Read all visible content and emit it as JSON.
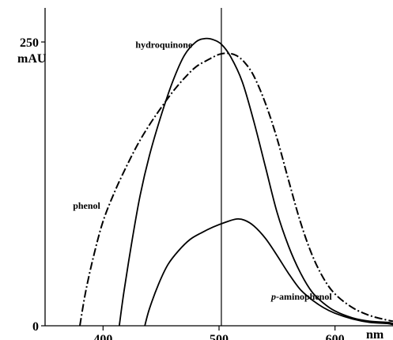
{
  "chart_data": {
    "type": "line",
    "x_unit_label": "nm",
    "y_unit_label": "mAU",
    "xlim": [
      350,
      650
    ],
    "ylim": [
      0,
      280
    ],
    "x_ticks": [
      {
        "value": 400,
        "label": "400"
      },
      {
        "value": 500,
        "label": "500"
      },
      {
        "value": 600,
        "label": "600"
      }
    ],
    "y_ticks": [
      {
        "value": 0,
        "label": "0"
      },
      {
        "value": 250,
        "label": "250"
      }
    ],
    "reference_line_x": 502,
    "series": [
      {
        "name": "hydroquinone",
        "style": "solid",
        "points": [
          [
            414,
            0
          ],
          [
            418,
            30
          ],
          [
            425,
            75
          ],
          [
            432,
            115
          ],
          [
            440,
            150
          ],
          [
            450,
            185
          ],
          [
            460,
            215
          ],
          [
            470,
            238
          ],
          [
            480,
            250
          ],
          [
            488,
            253
          ],
          [
            495,
            252
          ],
          [
            502,
            248
          ],
          [
            510,
            237
          ],
          [
            520,
            215
          ],
          [
            530,
            180
          ],
          [
            540,
            140
          ],
          [
            550,
            100
          ],
          [
            560,
            70
          ],
          [
            570,
            47
          ],
          [
            580,
            30
          ],
          [
            590,
            20
          ],
          [
            600,
            13
          ],
          [
            615,
            7
          ],
          [
            630,
            4
          ],
          [
            645,
            3
          ],
          [
            650,
            2
          ]
        ]
      },
      {
        "name": "phenol",
        "style": "dashdot",
        "points": [
          [
            380,
            0
          ],
          [
            385,
            30
          ],
          [
            392,
            62
          ],
          [
            400,
            92
          ],
          [
            410,
            118
          ],
          [
            420,
            140
          ],
          [
            430,
            160
          ],
          [
            440,
            177
          ],
          [
            450,
            192
          ],
          [
            460,
            206
          ],
          [
            470,
            218
          ],
          [
            480,
            228
          ],
          [
            490,
            234
          ],
          [
            500,
            239
          ],
          [
            508,
            240
          ],
          [
            515,
            238
          ],
          [
            522,
            232
          ],
          [
            530,
            220
          ],
          [
            540,
            196
          ],
          [
            550,
            165
          ],
          [
            560,
            128
          ],
          [
            570,
            92
          ],
          [
            580,
            63
          ],
          [
            590,
            42
          ],
          [
            600,
            28
          ],
          [
            615,
            16
          ],
          [
            630,
            9
          ],
          [
            645,
            5
          ],
          [
            650,
            4
          ]
        ]
      },
      {
        "name": "p-aminophenol",
        "style": "solid",
        "points": [
          [
            436,
            0
          ],
          [
            440,
            15
          ],
          [
            448,
            37
          ],
          [
            456,
            54
          ],
          [
            465,
            66
          ],
          [
            475,
            76
          ],
          [
            485,
            82
          ],
          [
            495,
            87
          ],
          [
            505,
            91
          ],
          [
            515,
            94
          ],
          [
            522,
            93
          ],
          [
            530,
            88
          ],
          [
            540,
            77
          ],
          [
            550,
            62
          ],
          [
            560,
            46
          ],
          [
            570,
            32
          ],
          [
            580,
            23
          ],
          [
            590,
            16
          ],
          [
            600,
            11
          ],
          [
            615,
            6
          ],
          [
            630,
            3
          ],
          [
            645,
            2
          ],
          [
            650,
            1
          ]
        ]
      }
    ],
    "labels": [
      {
        "series": "hydroquinone",
        "text": "hydroquinone",
        "x": 428,
        "y": 245
      },
      {
        "series": "phenol",
        "text": "phenol",
        "x": 374,
        "y": 103
      },
      {
        "series": "p-aminophenol",
        "text": "p-aminophenol",
        "x": 545,
        "y": 23
      }
    ]
  }
}
